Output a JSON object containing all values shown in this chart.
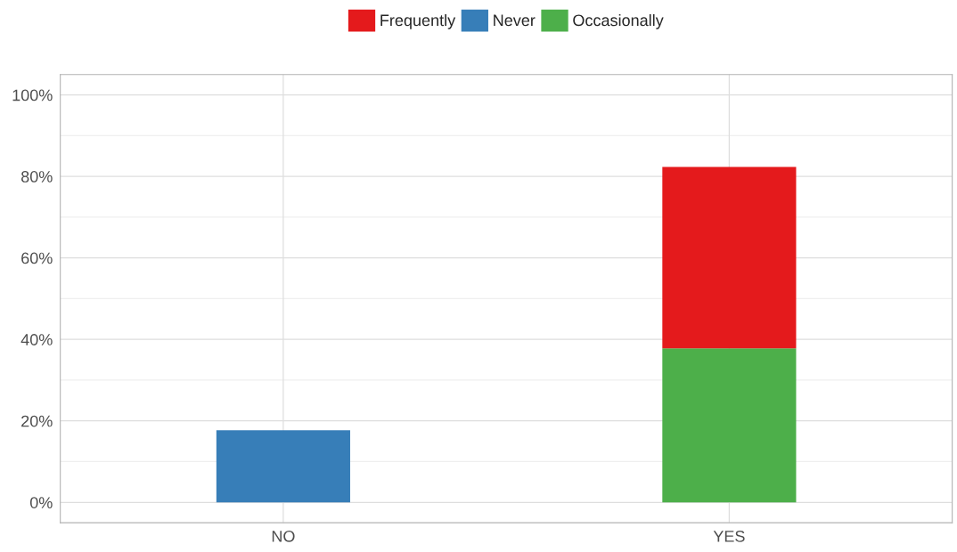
{
  "chart_data": {
    "type": "bar",
    "stacked": true,
    "categories": [
      "NO",
      "YES"
    ],
    "series": [
      {
        "name": "Occasionally",
        "color": "#4daf4a",
        "values": [
          null,
          37.8
        ]
      },
      {
        "name": "Frequently",
        "color": "#e41a1c",
        "values": [
          null,
          44.5
        ]
      },
      {
        "name": "Never",
        "color": "#377eb8",
        "values": [
          17.7,
          null
        ]
      }
    ],
    "ylim": [
      -5,
      105
    ],
    "yticks": [
      {
        "value": 0,
        "label": "0%"
      },
      {
        "value": 10,
        "label": null
      },
      {
        "value": 20,
        "label": "20%"
      },
      {
        "value": 30,
        "label": null
      },
      {
        "value": 40,
        "label": "40%"
      },
      {
        "value": 50,
        "label": null
      },
      {
        "value": 60,
        "label": "60%"
      },
      {
        "value": 70,
        "label": null
      },
      {
        "value": 80,
        "label": "80%"
      },
      {
        "value": 90,
        "label": null
      },
      {
        "value": 100,
        "label": "100%"
      }
    ],
    "grid": true,
    "legend": "top"
  }
}
